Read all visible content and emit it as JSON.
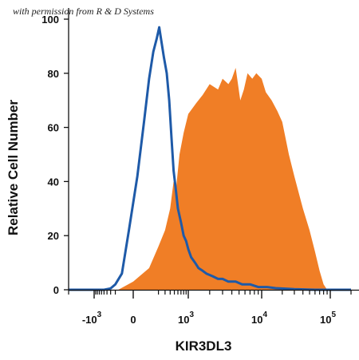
{
  "watermark": "with permission from R & D Systems",
  "chart_data": {
    "type": "area",
    "title": "",
    "xlabel": "KIR3DL3",
    "ylabel": "Relative Cell Number",
    "x_scale": "biexponential",
    "xlim": [
      -2000,
      200000
    ],
    "ylim": [
      0,
      100
    ],
    "y_ticks": [
      0,
      20,
      40,
      60,
      80,
      100
    ],
    "x_ticks": [
      {
        "value": -1000,
        "base": "-10",
        "exp": "3"
      },
      {
        "value": 0,
        "base": "0",
        "exp": ""
      },
      {
        "value": 1000,
        "base": "10",
        "exp": "3"
      },
      {
        "value": 10000,
        "base": "10",
        "exp": "4"
      },
      {
        "value": 100000,
        "base": "10",
        "exp": "5"
      }
    ],
    "grid": false,
    "legend": "none",
    "series": [
      {
        "style": "filled",
        "color": "#f07e26",
        "points": [
          [
            -400,
            0
          ],
          [
            -150,
            0
          ],
          [
            0,
            3
          ],
          [
            100,
            8
          ],
          [
            200,
            16
          ],
          [
            300,
            22
          ],
          [
            400,
            30
          ],
          [
            480,
            40
          ],
          [
            550,
            38
          ],
          [
            650,
            50
          ],
          [
            800,
            58
          ],
          [
            1000,
            65
          ],
          [
            1300,
            69
          ],
          [
            1600,
            72
          ],
          [
            2000,
            76
          ],
          [
            2600,
            74
          ],
          [
            3000,
            78
          ],
          [
            3600,
            76
          ],
          [
            4000,
            78
          ],
          [
            4500,
            82
          ],
          [
            5200,
            70
          ],
          [
            5800,
            74
          ],
          [
            6500,
            80
          ],
          [
            7500,
            78
          ],
          [
            8500,
            80
          ],
          [
            10000,
            78
          ],
          [
            11500,
            73
          ],
          [
            14000,
            70
          ],
          [
            17000,
            66
          ],
          [
            20000,
            62
          ],
          [
            25000,
            50
          ],
          [
            30000,
            42
          ],
          [
            40000,
            30
          ],
          [
            50000,
            22
          ],
          [
            60000,
            14
          ],
          [
            70000,
            7
          ],
          [
            80000,
            2
          ],
          [
            90000,
            0
          ],
          [
            150000,
            0
          ]
        ]
      },
      {
        "style": "line",
        "color": "#1e5aa8",
        "points": [
          [
            -2000,
            0
          ],
          [
            -500,
            0
          ],
          [
            -300,
            0.5
          ],
          [
            -200,
            2
          ],
          [
            -100,
            6
          ],
          [
            -30,
            22
          ],
          [
            20,
            42
          ],
          [
            60,
            62
          ],
          [
            100,
            78
          ],
          [
            140,
            88
          ],
          [
            180,
            93
          ],
          [
            210,
            97
          ],
          [
            240,
            92
          ],
          [
            280,
            86
          ],
          [
            330,
            80
          ],
          [
            380,
            70
          ],
          [
            430,
            56
          ],
          [
            480,
            44
          ],
          [
            530,
            38
          ],
          [
            600,
            30
          ],
          [
            700,
            25
          ],
          [
            800,
            20
          ],
          [
            900,
            18
          ],
          [
            1000,
            15
          ],
          [
            1100,
            12
          ],
          [
            1250,
            10
          ],
          [
            1400,
            8
          ],
          [
            1600,
            7
          ],
          [
            1800,
            6
          ],
          [
            2200,
            5
          ],
          [
            2600,
            4
          ],
          [
            3000,
            4
          ],
          [
            3600,
            3
          ],
          [
            4500,
            3
          ],
          [
            5500,
            2
          ],
          [
            7000,
            2
          ],
          [
            9000,
            1
          ],
          [
            12000,
            1
          ],
          [
            16000,
            0.6
          ],
          [
            22000,
            0.4
          ],
          [
            30000,
            0.2
          ],
          [
            60000,
            0
          ],
          [
            200000,
            0
          ]
        ]
      }
    ]
  }
}
